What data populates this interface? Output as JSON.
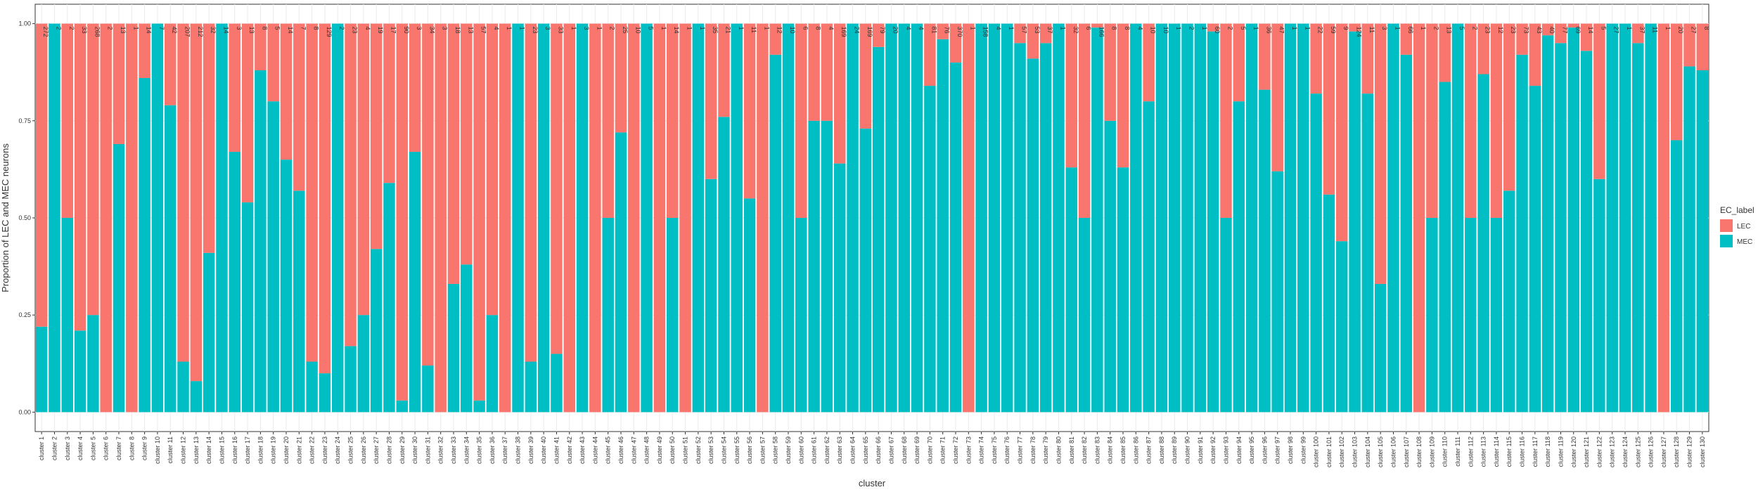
{
  "chart_data": {
    "type": "stacked_bar",
    "x_label": "cluster",
    "y_label": "Proportion of LEC and MEC neurons",
    "legend_title": "EC_label",
    "legend_position": "right",
    "grid": true,
    "categories": [
      "cluster 1",
      "cluster 2",
      "cluster 3",
      "cluster 4",
      "cluster 5",
      "cluster 6",
      "cluster 7",
      "cluster 8",
      "cluster 9",
      "cluster 10",
      "cluster 11",
      "cluster 12",
      "cluster 13",
      "cluster 14",
      "cluster 15",
      "cluster 16",
      "cluster 17",
      "cluster 18",
      "cluster 19",
      "cluster 20",
      "cluster 21",
      "cluster 22",
      "cluster 23",
      "cluster 24",
      "cluster 25",
      "cluster 26",
      "cluster 27",
      "cluster 28",
      "cluster 29",
      "cluster 30",
      "cluster 31",
      "cluster 32",
      "cluster 33",
      "cluster 34",
      "cluster 35",
      "cluster 36",
      "cluster 37",
      "cluster 38",
      "cluster 39",
      "cluster 40",
      "cluster 41",
      "cluster 42",
      "cluster 43",
      "cluster 44",
      "cluster 45",
      "cluster 46",
      "cluster 47",
      "cluster 48",
      "cluster 49",
      "cluster 50",
      "cluster 51",
      "cluster 52",
      "cluster 53",
      "cluster 54",
      "cluster 55",
      "cluster 56",
      "cluster 57",
      "cluster 58",
      "cluster 59",
      "cluster 60",
      "cluster 61",
      "cluster 62",
      "cluster 63",
      "cluster 64",
      "cluster 65",
      "cluster 66",
      "cluster 67",
      "cluster 68",
      "cluster 69",
      "cluster 70",
      "cluster 71",
      "cluster 72",
      "cluster 73",
      "cluster 74",
      "cluster 75",
      "cluster 76",
      "cluster 77",
      "cluster 78",
      "cluster 79",
      "cluster 80",
      "cluster 81",
      "cluster 82",
      "cluster 83",
      "cluster 84",
      "cluster 85",
      "cluster 86",
      "cluster 87",
      "cluster 88",
      "cluster 89",
      "cluster 90",
      "cluster 91",
      "cluster 92",
      "cluster 93",
      "cluster 94",
      "cluster 95",
      "cluster 96",
      "cluster 97",
      "cluster 98",
      "cluster 99",
      "cluster 100",
      "cluster 101",
      "cluster 102",
      "cluster 103",
      "cluster 104",
      "cluster 105",
      "cluster 106",
      "cluster 107",
      "cluster 108",
      "cluster 109",
      "cluster 110",
      "cluster 111",
      "cluster 112",
      "cluster 113",
      "cluster 114",
      "cluster 115",
      "cluster 116",
      "cluster 117",
      "cluster 118",
      "cluster 119",
      "cluster 120",
      "cluster 121",
      "cluster 122",
      "cluster 123",
      "cluster 124",
      "cluster 125",
      "cluster 126",
      "cluster 127",
      "cluster 128",
      "cluster 129",
      "cluster 130"
    ],
    "series": [
      {
        "name": "LEC",
        "color": "#f8766d",
        "values": [
          0.78,
          0,
          0.5,
          0.79,
          0.75,
          1,
          0.31,
          1,
          0.14,
          0,
          0.21,
          0.87,
          0.92,
          0.59,
          0,
          0.33,
          0.46,
          0.12,
          0.2,
          0.35,
          0.43,
          0.87,
          0.9,
          0,
          0.83,
          0.75,
          0.58,
          0.41,
          0.97,
          0.33,
          0.88,
          1,
          0.67,
          0.62,
          0.97,
          0.75,
          1,
          0,
          0.87,
          0,
          0.85,
          1,
          0,
          1,
          0.5,
          0.28,
          1,
          0,
          1,
          0.5,
          1,
          0,
          0.4,
          0.24,
          0,
          0.45,
          1,
          0.08,
          0,
          0.5,
          0.25,
          0.25,
          0.36,
          0,
          0.27,
          0.06,
          0,
          0,
          0,
          0.16,
          0.04,
          0.1,
          1,
          0,
          0,
          0,
          0.05,
          0.09,
          0.05,
          0,
          0.37,
          0.5,
          0.01,
          0.25,
          0.37,
          0,
          0.2,
          0,
          0,
          0,
          0,
          0.02,
          0.5,
          0.2,
          0,
          0.17,
          0.38,
          0,
          0,
          0.18,
          0.44,
          0.56,
          0.02,
          0.18,
          0.67,
          0,
          0.08,
          1,
          0.5,
          0.15,
          0,
          0.5,
          0.13,
          0.5,
          0.43,
          0.08,
          0.16,
          0.03,
          0.05,
          0.01,
          0.07,
          0.4,
          0,
          0,
          0.05,
          0,
          1,
          0.3,
          0.11,
          0.12
        ]
      },
      {
        "name": "MEC",
        "color": "#00bfc4",
        "values": [
          0.22,
          1,
          0.5,
          0.21,
          0.25,
          0,
          0.69,
          0,
          0.86,
          1,
          0.79,
          0.13,
          0.08,
          0.41,
          1,
          0.67,
          0.54,
          0.88,
          0.8,
          0.65,
          0.57,
          0.13,
          0.1,
          1,
          0.17,
          0.25,
          0.42,
          0.59,
          0.03,
          0.67,
          0.12,
          0,
          0.33,
          0.38,
          0.03,
          0.25,
          0,
          1,
          0.13,
          1,
          0.15,
          0,
          1,
          0,
          0.5,
          0.72,
          0,
          1,
          0,
          0.5,
          0,
          1,
          0.6,
          0.76,
          1,
          0.55,
          0,
          0.92,
          1,
          0.5,
          0.75,
          0.75,
          0.64,
          1,
          0.73,
          0.94,
          1,
          1,
          1,
          0.84,
          0.96,
          0.9,
          0,
          1,
          1,
          1,
          0.95,
          0.91,
          0.95,
          1,
          0.63,
          0.5,
          0.99,
          0.75,
          0.63,
          1,
          0.8,
          1,
          1,
          1,
          1,
          0.98,
          0.5,
          0.8,
          1,
          0.83,
          0.62,
          1,
          1,
          0.82,
          0.56,
          0.44,
          0.98,
          0.82,
          0.33,
          1,
          0.92,
          0,
          0.5,
          0.85,
          1,
          0.5,
          0.87,
          0.5,
          0.57,
          0.92,
          0.84,
          0.97,
          0.95,
          0.99,
          0.93,
          0.6,
          1,
          1,
          0.95,
          1,
          0,
          0.7,
          0.89,
          0.88
        ]
      }
    ],
    "annotations": [
      272,
      2,
      2,
      33,
      268,
      2,
      13,
      1,
      14,
      7,
      42,
      207,
      212,
      32,
      14,
      3,
      13,
      8,
      5,
      14,
      7,
      8,
      129,
      2,
      23,
      4,
      19,
      17,
      90,
      3,
      34,
      3,
      18,
      13,
      57,
      4,
      1,
      1,
      23,
      3,
      33,
      1,
      3,
      1,
      2,
      25,
      10,
      5,
      1,
      14,
      1,
      1,
      35,
      21,
      1,
      11,
      1,
      12,
      10,
      6,
      8,
      4,
      169,
      24,
      169,
      79,
      20,
      4,
      4,
      81,
      76,
      370,
      1,
      158,
      4,
      1,
      57,
      53,
      37,
      1,
      32,
      6,
      166,
      8,
      8,
      4,
      10,
      10,
      1,
      2,
      1,
      60,
      2,
      5,
      1,
      36,
      47,
      1,
      1,
      22,
      59,
      9,
      124,
      11,
      3,
      1,
      66,
      1,
      2,
      13,
      5,
      2,
      23,
      12,
      23,
      73,
      43,
      40,
      77,
      69,
      14,
      5,
      27,
      1,
      37,
      11,
      1,
      20,
      27,
      8
    ],
    "ylim": [
      -0.05,
      1.05
    ],
    "yticks": [
      {
        "value": 0,
        "label": "0.00"
      },
      {
        "value": 0.25,
        "label": "0.25"
      },
      {
        "value": 0.5,
        "label": "0.50"
      },
      {
        "value": 0.75,
        "label": "0.75"
      },
      {
        "value": 1,
        "label": "1.00"
      }
    ]
  }
}
